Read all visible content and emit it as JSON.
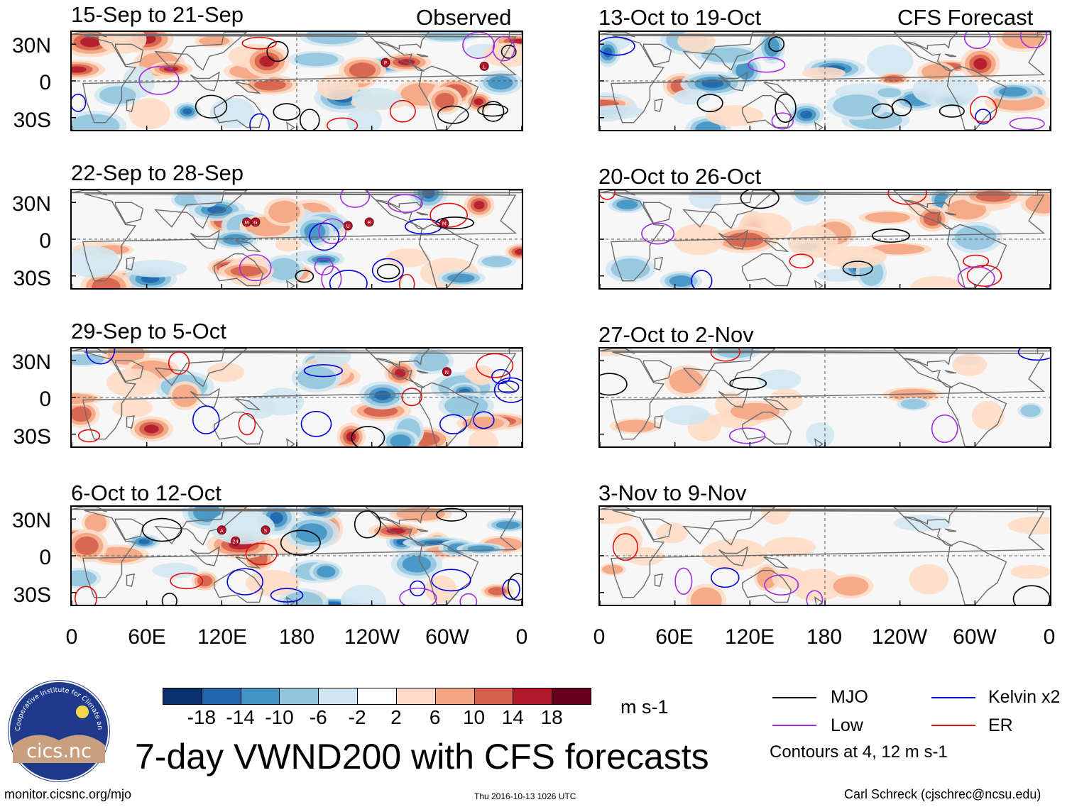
{
  "header": {
    "observed_label": "Observed",
    "forecast_label": "CFS Forecast"
  },
  "panels": {
    "observed": [
      {
        "title": "15-Sep to 21-Sep"
      },
      {
        "title": "22-Sep to 28-Sep"
      },
      {
        "title": "29-Sep to 5-Oct"
      },
      {
        "title": "6-Oct to 12-Oct"
      }
    ],
    "forecast": [
      {
        "title": "13-Oct to 19-Oct"
      },
      {
        "title": "20-Oct to 26-Oct"
      },
      {
        "title": "27-Oct to 2-Nov"
      },
      {
        "title": "3-Nov to 9-Nov"
      }
    ]
  },
  "axes": {
    "y_labels": [
      "30N",
      "0",
      "30S"
    ],
    "x_labels": [
      "0",
      "60E",
      "120E",
      "180",
      "120W",
      "60W",
      "0"
    ]
  },
  "storm_markers": {
    "p1": [
      "P",
      "L"
    ],
    "p2": [
      "M",
      "G",
      "U",
      "R",
      "M"
    ],
    "p3": [
      "N"
    ],
    "p4": [
      "A",
      "24",
      "S"
    ]
  },
  "colorbar": {
    "ticks": [
      "-18",
      "-14",
      "-10",
      "-6",
      "-2",
      "2",
      "6",
      "10",
      "14",
      "18"
    ],
    "colors": [
      "#08306b",
      "#2166ac",
      "#4393c3",
      "#92c5de",
      "#d1e5f0",
      "#ffffff",
      "#fddbc7",
      "#f4a582",
      "#d6604d",
      "#b2182b",
      "#67001f"
    ],
    "units": "m s-1"
  },
  "legend": {
    "items": [
      {
        "label": "MJO",
        "color": "#000000"
      },
      {
        "label": "Kelvin x2",
        "color": "#0000dd"
      },
      {
        "label": "Low",
        "color": "#a02ee0"
      },
      {
        "label": "ER",
        "color": "#e01010"
      }
    ],
    "note": "Contours at 4, 12 m s-1"
  },
  "title": "7-day VWND200 with CFS forecasts",
  "logo": {
    "text": "cics.nc",
    "ring_text": "Cooperative Institute for Climate and Satellites"
  },
  "footer": {
    "url": "monitor.cicsnc.org/mjo",
    "timestamp": "Thu 2016-10-13 1026 UTC",
    "author": "Carl Schreck (cjschrec@ncsu.edu)"
  }
}
